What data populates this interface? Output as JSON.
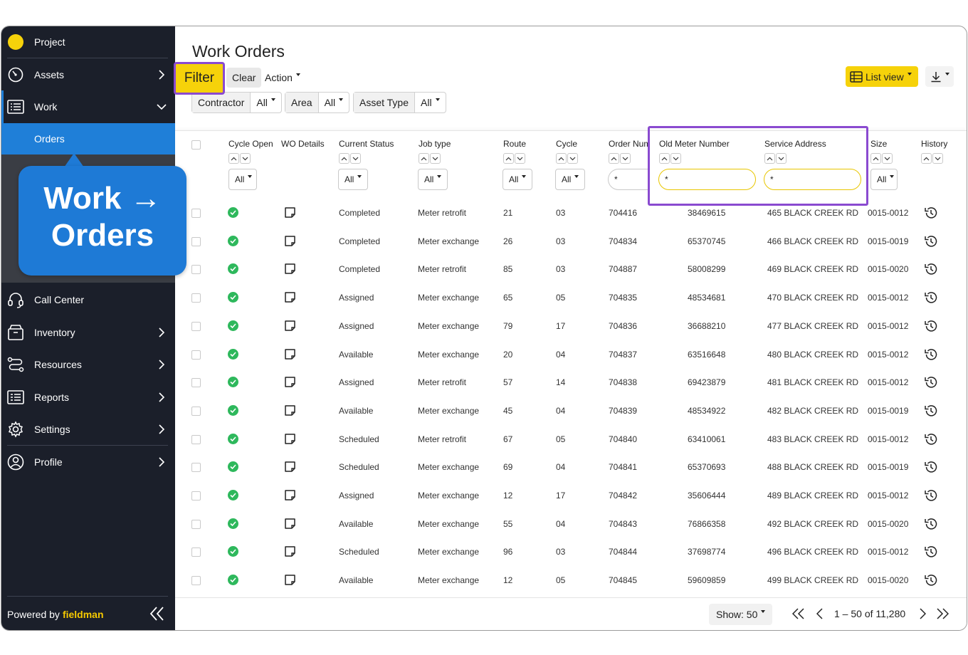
{
  "sidebar": {
    "project": "Project",
    "assets": "Assets",
    "work": "Work",
    "orders": "Orders",
    "call_center": "Call Center",
    "inventory": "Inventory",
    "resources": "Resources",
    "reports": "Reports",
    "settings": "Settings",
    "profile": "Profile",
    "powered_by": "Powered by",
    "brand": "fieldman",
    "project_dot_color": "#f6d20a"
  },
  "callout": {
    "line1": "Work →",
    "line2": "Orders"
  },
  "header": {
    "title": "Work Orders",
    "filter": "Filter",
    "clear": "Clear",
    "action": "Action",
    "list_view": "List view"
  },
  "filters": {
    "contractor_label": "Contractor",
    "contractor_value": "All",
    "area_label": "Area",
    "area_value": "All",
    "asset_type_label": "Asset Type",
    "asset_type_value": "All"
  },
  "columns": {
    "cycle_open": "Cycle Open",
    "wo_details": "WO Details",
    "current_status": "Current Status",
    "job_type": "Job type",
    "route": "Route",
    "cycle": "Cycle",
    "order_number": "Order Num",
    "old_meter_number": "Old Meter Number",
    "service_address": "Service Address",
    "size": "Size",
    "history": "History"
  },
  "column_filters": {
    "cycle_open": "All",
    "current_status": "All",
    "job_type": "All",
    "route": "All",
    "cycle": "All",
    "order_number": "*",
    "old_meter_number": "*",
    "service_address": "*",
    "size": "All"
  },
  "rows": [
    {
      "status": "Completed",
      "job": "Meter retrofit",
      "route": "21",
      "cycle": "03",
      "order": "704416",
      "meter": "38469615",
      "address": "465 BLACK CREEK RD",
      "size": "0015-0012"
    },
    {
      "status": "Completed",
      "job": "Meter exchange",
      "route": "26",
      "cycle": "03",
      "order": "704834",
      "meter": "65370745",
      "address": "466 BLACK CREEK RD",
      "size": "0015-0019"
    },
    {
      "status": "Completed",
      "job": "Meter retrofit",
      "route": "85",
      "cycle": "03",
      "order": "704887",
      "meter": "58008299",
      "address": "469 BLACK CREEK RD",
      "size": "0015-0020"
    },
    {
      "status": "Assigned",
      "job": "Meter exchange",
      "route": "65",
      "cycle": "05",
      "order": "704835",
      "meter": "48534681",
      "address": "470 BLACK CREEK RD",
      "size": "0015-0012"
    },
    {
      "status": "Assigned",
      "job": "Meter exchange",
      "route": "79",
      "cycle": "17",
      "order": "704836",
      "meter": "36688210",
      "address": "477 BLACK CREEK RD",
      "size": "0015-0012"
    },
    {
      "status": "Available",
      "job": "Meter exchange",
      "route": "20",
      "cycle": "04",
      "order": "704837",
      "meter": "63516648",
      "address": "480 BLACK CREEK RD",
      "size": "0015-0012"
    },
    {
      "status": "Assigned",
      "job": "Meter retrofit",
      "route": "57",
      "cycle": "14",
      "order": "704838",
      "meter": "69423879",
      "address": "481 BLACK CREEK RD",
      "size": "0015-0012"
    },
    {
      "status": "Available",
      "job": "Meter exchange",
      "route": "45",
      "cycle": "04",
      "order": "704839",
      "meter": "48534922",
      "address": "482 BLACK CREEK RD",
      "size": "0015-0019"
    },
    {
      "status": "Scheduled",
      "job": "Meter retrofit",
      "route": "67",
      "cycle": "05",
      "order": "704840",
      "meter": "63410061",
      "address": "483 BLACK CREEK RD",
      "size": "0015-0012"
    },
    {
      "status": "Scheduled",
      "job": "Meter exchange",
      "route": "69",
      "cycle": "04",
      "order": "704841",
      "meter": "65370693",
      "address": "488 BLACK CREEK RD",
      "size": "0015-0019"
    },
    {
      "status": "Assigned",
      "job": "Meter exchange",
      "route": "12",
      "cycle": "17",
      "order": "704842",
      "meter": "35606444",
      "address": "489 BLACK CREEK RD",
      "size": "0015-0012"
    },
    {
      "status": "Available",
      "job": "Meter exchange",
      "route": "55",
      "cycle": "04",
      "order": "704843",
      "meter": "76866358",
      "address": "492 BLACK CREEK RD",
      "size": "0015-0020"
    },
    {
      "status": "Scheduled",
      "job": "Meter exchange",
      "route": "96",
      "cycle": "03",
      "order": "704844",
      "meter": "37698774",
      "address": "496 BLACK CREEK RD",
      "size": "0015-0012"
    },
    {
      "status": "Available",
      "job": "Meter exchange",
      "route": "12",
      "cycle": "05",
      "order": "704845",
      "meter": "59609859",
      "address": "499 BLACK CREEK RD",
      "size": "0015-0020"
    }
  ],
  "footer": {
    "show": "Show: 50",
    "range": "1 – 50 of 11,280"
  },
  "colors": {
    "accent_yellow": "#f6d20a",
    "accent_blue": "#1f7fd8",
    "highlight_purple": "#8a4ad0",
    "ok_green": "#2eb85c"
  }
}
